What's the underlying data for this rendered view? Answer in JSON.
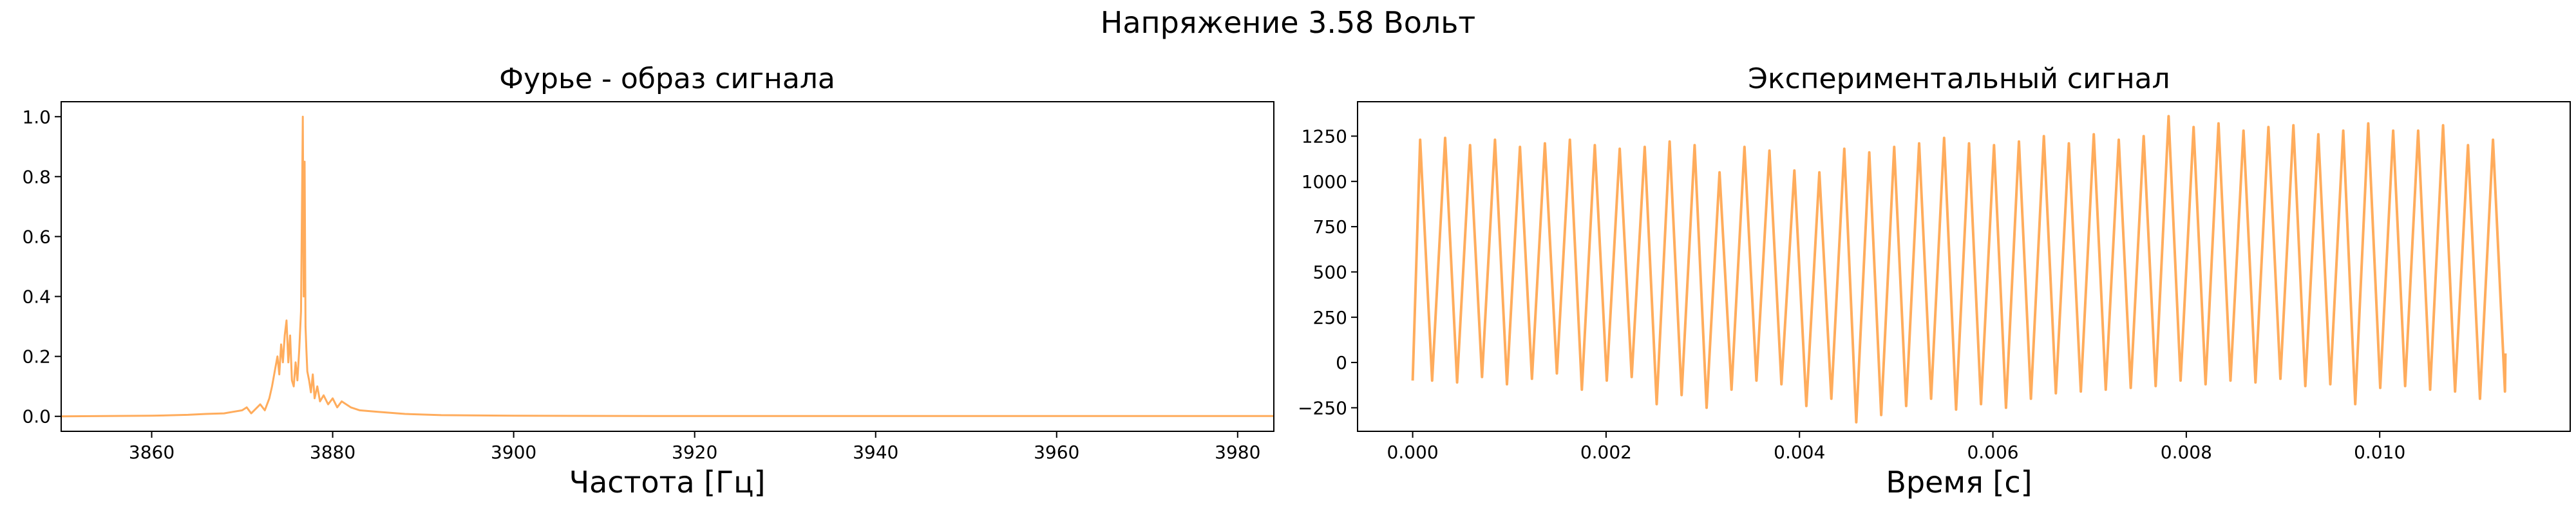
{
  "figure": {
    "suptitle": "Напряжение 3.58 Вольт"
  },
  "chart_data": [
    {
      "type": "line",
      "title": "Фурье - образ сигнала",
      "xlabel": "Частота [Гц]",
      "ylabel": "",
      "xlim": [
        3850,
        3984
      ],
      "ylim": [
        -0.05,
        1.05
      ],
      "xticks": [
        3860,
        3880,
        3900,
        3920,
        3940,
        3960,
        3980
      ],
      "yticks": [
        0.0,
        0.2,
        0.4,
        0.6,
        0.8,
        1.0
      ],
      "xtick_labels": [
        "3860",
        "3880",
        "3900",
        "3920",
        "3940",
        "3960",
        "3980"
      ],
      "ytick_labels": [
        "0.0",
        "0.2",
        "0.4",
        "0.6",
        "0.8",
        "1.0"
      ],
      "grid": false,
      "color": "#FFAC5C",
      "series": [
        {
          "x": [
            3850,
            3860,
            3864,
            3866,
            3868,
            3869,
            3870,
            3870.5,
            3871,
            3871.5,
            3872,
            3872.5,
            3873,
            3873.3,
            3873.6,
            3873.9,
            3874.1,
            3874.3,
            3874.5,
            3874.7,
            3874.9,
            3875.1,
            3875.3,
            3875.5,
            3875.7,
            3875.9,
            3876.1,
            3876.3,
            3876.5,
            3876.7,
            3876.8,
            3876.9,
            3877.0,
            3877.1,
            3877.2,
            3877.4,
            3877.6,
            3877.8,
            3878.0,
            3878.3,
            3878.6,
            3879.0,
            3879.5,
            3880,
            3880.5,
            3881,
            3882,
            3883,
            3885,
            3888,
            3892,
            3900,
            3920,
            3940,
            3960,
            3984
          ],
          "y": [
            0.0,
            0.002,
            0.005,
            0.008,
            0.01,
            0.015,
            0.02,
            0.03,
            0.01,
            0.025,
            0.04,
            0.02,
            0.06,
            0.1,
            0.15,
            0.2,
            0.14,
            0.24,
            0.18,
            0.27,
            0.32,
            0.18,
            0.27,
            0.12,
            0.1,
            0.18,
            0.12,
            0.22,
            0.35,
            1.0,
            0.4,
            0.85,
            0.3,
            0.22,
            0.15,
            0.12,
            0.08,
            0.14,
            0.06,
            0.1,
            0.05,
            0.07,
            0.04,
            0.06,
            0.03,
            0.05,
            0.03,
            0.02,
            0.015,
            0.008,
            0.004,
            0.002,
            0.001,
            0.001,
            0.001,
            0.001
          ]
        }
      ]
    },
    {
      "type": "line",
      "title": "Экспериментальный сигнал",
      "xlabel": "Время [с]",
      "ylabel": "",
      "xlim": [
        -0.00057,
        0.01197
      ],
      "ylim": [
        -380,
        1440
      ],
      "xticks": [
        0.0,
        0.002,
        0.004,
        0.006,
        0.008,
        0.01
      ],
      "yticks": [
        -250,
        0,
        250,
        500,
        750,
        1000,
        1250
      ],
      "xtick_labels": [
        "0.000",
        "0.002",
        "0.004",
        "0.006",
        "0.008",
        "0.010"
      ],
      "ytick_labels": [
        "−250",
        "0",
        "250",
        "500",
        "750",
        "1000",
        "1250"
      ],
      "grid": false,
      "color": "#FFAC5C",
      "signal": {
        "start": 0.0,
        "end": 0.0113,
        "period": 0.000258,
        "highs": [
          1230,
          1240,
          1200,
          1230,
          1190,
          1210,
          1230,
          1200,
          1180,
          1190,
          1220,
          1200,
          1050,
          1190,
          1170,
          1060,
          1050,
          1180,
          1160,
          1190,
          1210,
          1240,
          1210,
          1200,
          1220,
          1250,
          1210,
          1260,
          1230,
          1250,
          1360,
          1300,
          1320,
          1280,
          1300,
          1310,
          1260,
          1280,
          1320,
          1280,
          1280,
          1310,
          1200,
          1230,
          1150,
          1140
        ],
        "lows": [
          -100,
          -110,
          -80,
          -120,
          -90,
          -60,
          -150,
          -100,
          -80,
          -230,
          -180,
          -250,
          -150,
          -100,
          -120,
          -240,
          -200,
          -330,
          -290,
          -240,
          -200,
          -260,
          -230,
          -250,
          -200,
          -170,
          -160,
          -150,
          -140,
          -130,
          -100,
          -120,
          -100,
          -110,
          -90,
          -130,
          -120,
          -230,
          -140,
          -130,
          -150,
          -160,
          -200,
          -160,
          -190,
          -160
        ],
        "end_value": 50
      }
    }
  ]
}
